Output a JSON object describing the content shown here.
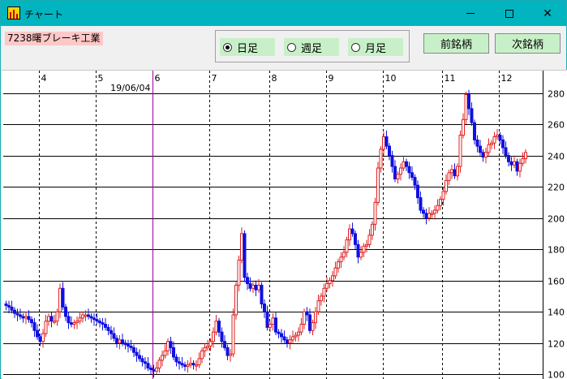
{
  "window": {
    "title": "チャート"
  },
  "stock": {
    "label": "7238曙ブレーキ工業"
  },
  "range": {
    "options": [
      {
        "label": "日足",
        "selected": true
      },
      {
        "label": "週足",
        "selected": false
      },
      {
        "label": "月足",
        "selected": false
      }
    ]
  },
  "nav": {
    "prev_label": "前銘柄",
    "next_label": "次銘柄"
  },
  "chart_data": {
    "type": "candlestick",
    "title": "",
    "cursor_date_label": "19/06/04",
    "month_labels": [
      "4",
      "5",
      "6",
      "7",
      "8",
      "9",
      "10",
      "11",
      "12"
    ],
    "month_label_day_index": [
      12,
      32,
      52,
      72,
      93,
      113,
      133,
      154,
      174
    ],
    "cursor_day_index": 52,
    "y_ticks": [
      100,
      120,
      140,
      160,
      180,
      200,
      220,
      240,
      260,
      280
    ],
    "ylim": [
      98,
      285
    ],
    "grid": true,
    "colors": {
      "up": "#e02020",
      "down": "#1010e0",
      "cursor": "#a000a0",
      "grid": "#000000"
    },
    "close_series": [
      144,
      143,
      141,
      139,
      138,
      137,
      136,
      137,
      135,
      133,
      128,
      124,
      121,
      126,
      134,
      137,
      134,
      134,
      140,
      155,
      143,
      137,
      133,
      132,
      133,
      134,
      136,
      138,
      138,
      137,
      136,
      135,
      134,
      133,
      132,
      130,
      128,
      126,
      123,
      120,
      122,
      120,
      119,
      118,
      117,
      114,
      112,
      110,
      108,
      107,
      104,
      103,
      102,
      104,
      109,
      112,
      115,
      121,
      117,
      111,
      108,
      107,
      106,
      105,
      106,
      107,
      106,
      106,
      110,
      115,
      117,
      118,
      121,
      127,
      134,
      127,
      121,
      117,
      112,
      113,
      138,
      157,
      173,
      190,
      162,
      158,
      155,
      157,
      154,
      157,
      145,
      140,
      130,
      132,
      136,
      127,
      126,
      124,
      122,
      120,
      122,
      124,
      125,
      127,
      132,
      140,
      138,
      128,
      133,
      140,
      147,
      150,
      155,
      158,
      160,
      163,
      168,
      172,
      175,
      178,
      186,
      193,
      190,
      183,
      175,
      178,
      182,
      183,
      189,
      196,
      210,
      232,
      244,
      252,
      246,
      240,
      233,
      225,
      228,
      232,
      236,
      233,
      229,
      226,
      221,
      213,
      205,
      203,
      200,
      203,
      203,
      205,
      208,
      212,
      217,
      224,
      229,
      231,
      227,
      233,
      253,
      263,
      279,
      270,
      261,
      250,
      246,
      242,
      239,
      242,
      247,
      248,
      252,
      253,
      250,
      245,
      240,
      236,
      234,
      236,
      230,
      235,
      238,
      242
    ]
  }
}
